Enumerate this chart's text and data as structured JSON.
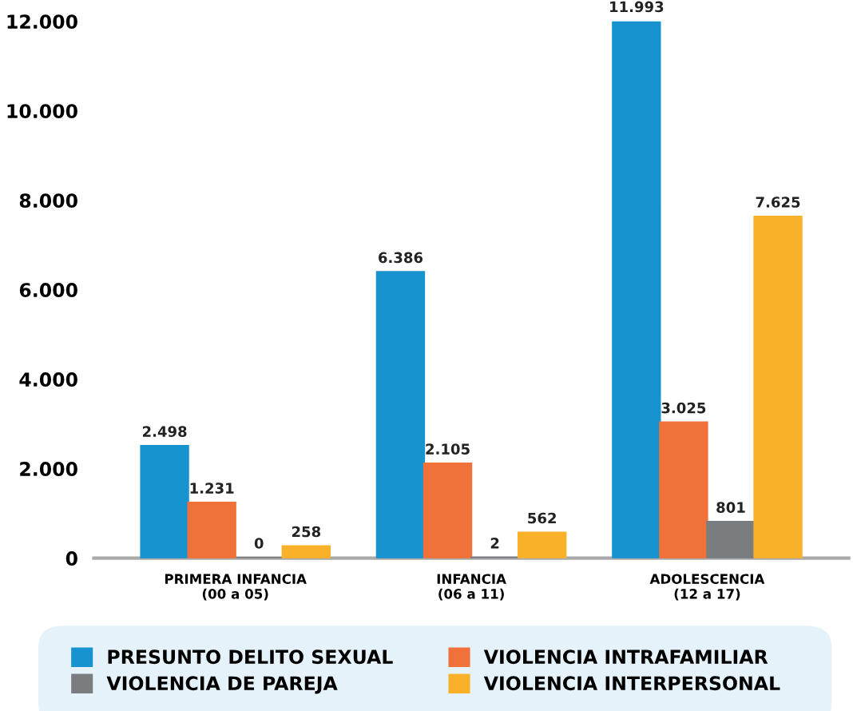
{
  "chart_data": {
    "type": "bar",
    "categories": [
      "PRIMERA INFANCIA\n(00 a 05)",
      "INFANCIA\n(06 a 11)",
      "ADOLESCENCIA\n(12 a 17)"
    ],
    "series": [
      {
        "name": "PRESUNTO DELITO SEXUAL",
        "color": "#1793cf",
        "values": [
          2498,
          6386,
          11993
        ],
        "value_labels": [
          "2.498",
          "6.386",
          "11.993"
        ]
      },
      {
        "name": "VIOLENCIA INTRAFAMILIAR",
        "color": "#f0713a",
        "values": [
          1231,
          2105,
          3025
        ],
        "value_labels": [
          "1.231",
          "2.105",
          "3.025"
        ]
      },
      {
        "name": "VIOLENCIA DE PAREJA",
        "color": "#7a7d80",
        "values": [
          0,
          2,
          801
        ],
        "value_labels": [
          "0",
          "2",
          "801"
        ]
      },
      {
        "name": "VIOLENCIA INTERPERSONAL",
        "color": "#f9b12a",
        "values": [
          258,
          562,
          7625
        ],
        "value_labels": [
          "258",
          "562",
          "7.625"
        ]
      }
    ],
    "ylim": [
      0,
      12000
    ],
    "yticks": [
      {
        "value": 0,
        "label": "0"
      },
      {
        "value": 2000,
        "label": "2.000"
      },
      {
        "value": 4000,
        "label": "4.000"
      },
      {
        "value": 6000,
        "label": "6.000"
      },
      {
        "value": 8000,
        "label": "8.000"
      },
      {
        "value": 10000,
        "label": "10.000"
      },
      {
        "value": 12000,
        "label": "12.000"
      }
    ],
    "grid": false,
    "legend": "bottom"
  }
}
